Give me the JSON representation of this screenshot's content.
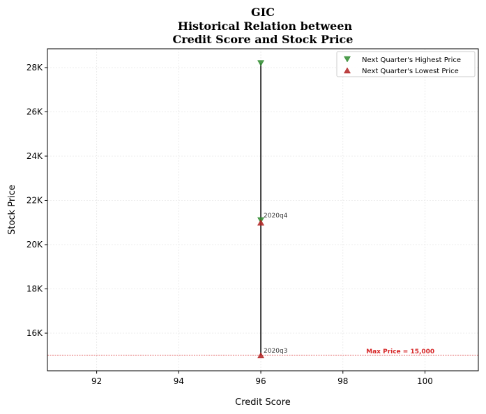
{
  "chart_data": {
    "type": "scatter",
    "title": [
      "GIC",
      "Historical Relation between",
      "Credit Score and Stock Price"
    ],
    "xlabel": "Credit Score",
    "ylabel": "Stock Price",
    "xlim": [
      90.8,
      101.3
    ],
    "ylim": [
      14300,
      28850
    ],
    "xticks": [
      92,
      94,
      96,
      98,
      100
    ],
    "yticks": [
      16000,
      18000,
      20000,
      22000,
      24000,
      26000,
      28000
    ],
    "ytick_labels": [
      "16K",
      "18K",
      "20K",
      "22K",
      "24K",
      "26K",
      "28K"
    ],
    "grid": true,
    "legend_position": "top-right",
    "series": [
      {
        "name": "Next Quarter's Highest Price",
        "marker": "triangle-down",
        "color": "#2e8b2e",
        "points": [
          {
            "x": 96,
            "y": 28200
          },
          {
            "x": 96,
            "y": 21100
          }
        ]
      },
      {
        "name": "Next Quarter's Lowest Price",
        "marker": "triangle-up",
        "color": "#b22222",
        "points": [
          {
            "x": 96,
            "y": 21000
          },
          {
            "x": 96,
            "y": 15000
          }
        ]
      }
    ],
    "range_lines": [
      {
        "x": 96,
        "y_low": 15000,
        "y_high": 28200
      }
    ],
    "annotations": [
      {
        "text": "2020q4",
        "x": 96,
        "y": 21100
      },
      {
        "text": "2020q3",
        "x": 96,
        "y": 15000
      }
    ],
    "reference_line": {
      "y": 15000,
      "label": "Max Price = 15,000",
      "color": "#d62728"
    }
  }
}
